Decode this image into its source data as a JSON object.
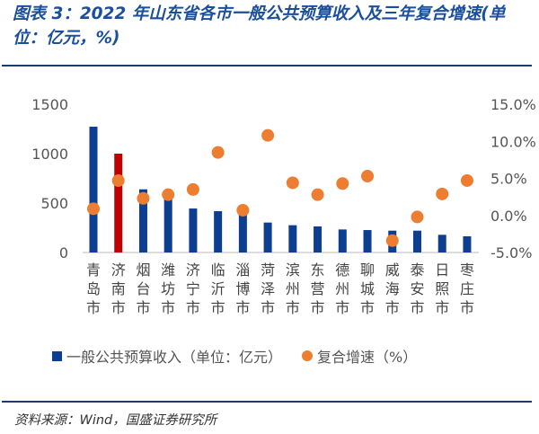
{
  "title": "图表 3：2022 年山东省各市一般公共预算收入及三年复合增速(单位：亿元，%)",
  "source": "资料来源：Wind，国盛证券研究所",
  "chart_data": {
    "type": "bar+scatter",
    "title": "图表 3：2022 年山东省各市一般公共预算收入及三年复合增速(单位：亿元，%)",
    "categories": [
      "青岛市",
      "济南市",
      "烟台市",
      "潍坊市",
      "济宁市",
      "临沂市",
      "淄博市",
      "菏泽市",
      "滨州市",
      "东营市",
      "德州市",
      "聊城市",
      "威海市",
      "泰安市",
      "日照市",
      "枣庄市"
    ],
    "series": [
      {
        "name": "一般公共预算收入（单位：亿元）",
        "type": "bar",
        "axis": "left",
        "color": "#0d3e8f",
        "highlight": {
          "index": 1,
          "color": "#c00000"
        },
        "values": [
          1273,
          1000,
          639,
          600,
          445,
          418,
          390,
          303,
          276,
          264,
          233,
          227,
          221,
          221,
          179,
          164
        ]
      },
      {
        "name": "复合增速（%）",
        "type": "scatter",
        "axis": "right",
        "color": "#ed7d31",
        "values": [
          0.9,
          4.7,
          2.3,
          2.8,
          3.5,
          8.5,
          0.7,
          10.8,
          4.4,
          2.8,
          4.3,
          5.3,
          -3.4,
          -0.2,
          2.9,
          4.7
        ]
      }
    ],
    "left_axis": {
      "ylim": [
        0,
        1500
      ],
      "ticks": [
        "0",
        "500",
        "1000",
        "1500"
      ]
    },
    "right_axis": {
      "ylim": [
        -5,
        15
      ],
      "ticks": [
        "-5.0%",
        "0.0%",
        "5.0%",
        "10.0%",
        "15.0%"
      ]
    },
    "grid": false,
    "legend": "bottom"
  },
  "colors": {
    "bar": "#0d3e8f",
    "highlight_bar": "#c00000",
    "dot": "#ed7d31",
    "title": "#1b4f9c",
    "rule": "#1f3b6e"
  }
}
